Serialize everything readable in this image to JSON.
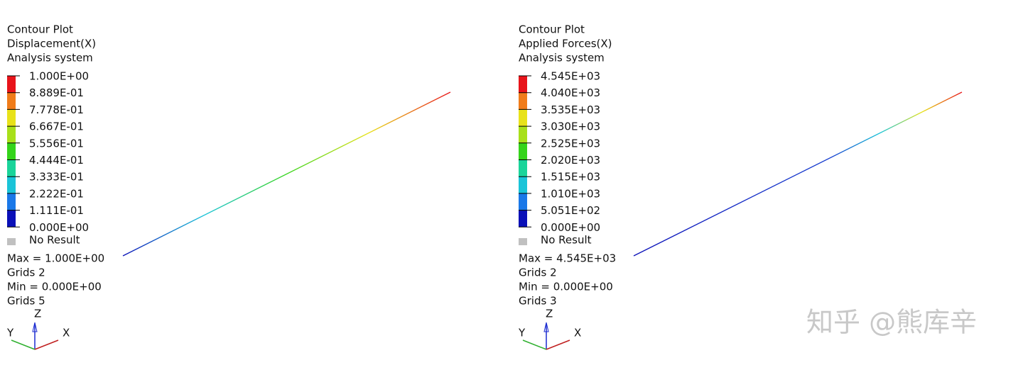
{
  "watermark": "知乎 @熊库辛",
  "panels": [
    {
      "title_lines": [
        "Contour Plot",
        "Displacement(X)",
        "Analysis system"
      ],
      "legend_labels": [
        "1.000E+00",
        "8.889E-01",
        "7.778E-01",
        "6.667E-01",
        "5.556E-01",
        "4.444E-01",
        "3.333E-01",
        "2.222E-01",
        "1.111E-01",
        "0.000E+00"
      ],
      "no_result": "No Result",
      "stats": [
        "Max =  1.000E+00",
        "Grids 2",
        "Min =  0.000E+00",
        "Grids 5"
      ],
      "axes": {
        "z": "Z",
        "y": "Y",
        "x": "X"
      }
    },
    {
      "title_lines": [
        "Contour Plot",
        "Applied Forces(X)",
        "Analysis system"
      ],
      "legend_labels": [
        "4.545E+03",
        "4.040E+03",
        "3.535E+03",
        "3.030E+03",
        "2.525E+03",
        "2.020E+03",
        "1.515E+03",
        "1.010E+03",
        "5.051E+02",
        "0.000E+00"
      ],
      "no_result": "No Result",
      "stats": [
        "Max =  4.545E+03",
        "Grids 2",
        "Min =  0.000E+00",
        "Grids 3"
      ],
      "axes": {
        "z": "Z",
        "y": "Y",
        "x": "X"
      }
    }
  ],
  "band_colors": [
    "#e8141a",
    "#f07c1a",
    "#e8e21a",
    "#a8e01a",
    "#34d41a",
    "#1ad49a",
    "#1ac4d8",
    "#1a78e8",
    "#0a10b8"
  ]
}
